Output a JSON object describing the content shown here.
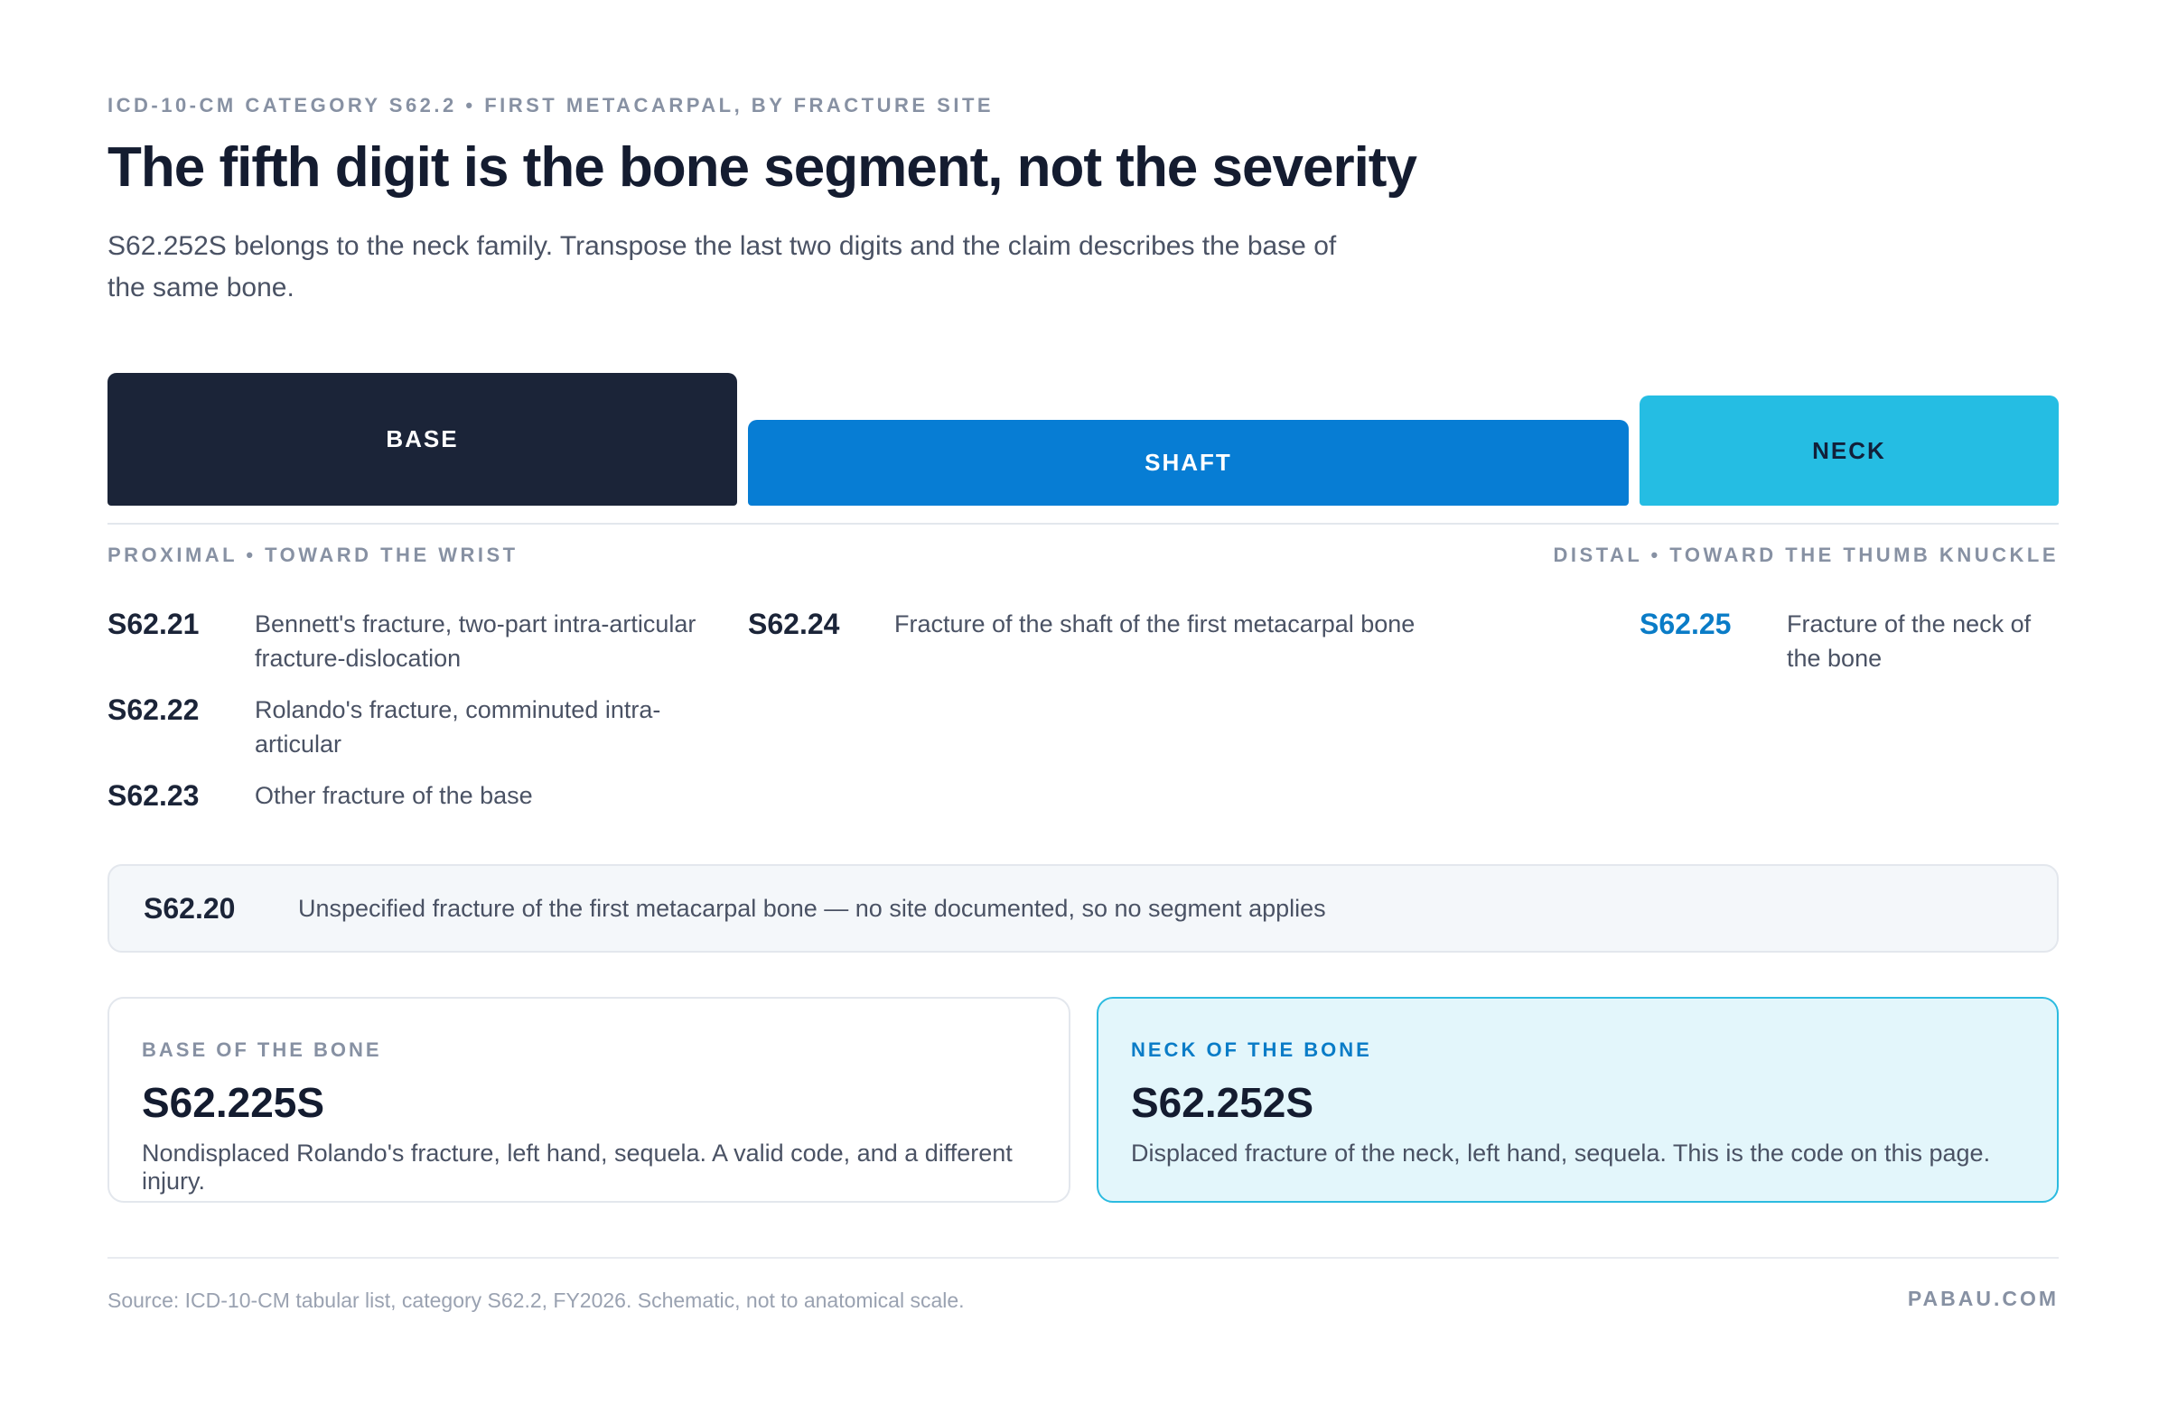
{
  "header": {
    "eyebrow": "ICD-10-CM CATEGORY S62.2 • FIRST METACARPAL, BY FRACTURE SITE",
    "title": "The fifth digit is the bone segment, not the severity",
    "subtitle": "S62.252S belongs to the neck family. Transpose the last two digits and the claim describes the base of the same bone."
  },
  "segments": [
    {
      "label": "BASE"
    },
    {
      "label": "SHAFT"
    },
    {
      "label": "NECK"
    }
  ],
  "directions": {
    "proximal": "PROXIMAL • TOWARD THE WRIST",
    "distal": "DISTAL • TOWARD THE THUMB KNUCKLE"
  },
  "groups": [
    {
      "codes": [
        {
          "code": "S62.21",
          "description": "Bennett's fracture, two-part intra-articular fracture-dislocation"
        },
        {
          "code": "S62.22",
          "description": "Rolando's fracture, comminuted intra-articular"
        },
        {
          "code": "S62.23",
          "description": "Other fracture of the base"
        }
      ]
    },
    {
      "codes": [
        {
          "code": "S62.24",
          "description": "Fracture of the shaft of the first metacarpal bone"
        }
      ]
    },
    {
      "codes": [
        {
          "code": "S62.25",
          "description": "Fracture of the neck of the bone"
        }
      ]
    }
  ],
  "unspecified": {
    "code": "S62.20",
    "description": "Unspecified fracture of the first metacarpal bone — no site documented, so no segment applies"
  },
  "cards": [
    {
      "label": "BASE OF THE BONE",
      "code": "S62.225S",
      "description": "Nondisplaced Rolando's fracture, left hand, sequela. A valid code, and a different injury."
    },
    {
      "label": "NECK OF THE BONE",
      "code": "S62.252S",
      "description": "Displaced fracture of the neck, left hand, sequela. This is the code on this page."
    }
  ],
  "footer": {
    "source": "Source: ICD-10-CM tabular list, category S62.2, FY2026. Schematic, not to anatomical scale.",
    "brand": "PABAU.COM"
  }
}
